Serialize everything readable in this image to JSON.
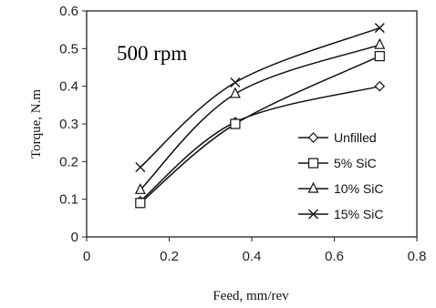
{
  "chart_data": {
    "type": "line",
    "title": "",
    "xlabel": "Feed, mm/rev",
    "ylabel": "Torque, N.m",
    "xlim": [
      0,
      0.8
    ],
    "ylim": [
      0,
      0.6
    ],
    "xticks": [
      0,
      0.2,
      0.4,
      0.6,
      0.8
    ],
    "yticks": [
      0,
      0.1,
      0.2,
      0.3,
      0.4,
      0.5,
      0.6
    ],
    "xtick_labels": [
      "0",
      "0.2",
      "0.4",
      "0.6",
      "0.8"
    ],
    "ytick_labels": [
      "0",
      "0.1",
      "0.2",
      "0.3",
      "0.4",
      "0.5",
      "0.6"
    ],
    "grid": false,
    "legend_position": "lower-right",
    "annotation": "500 rpm",
    "x": [
      0.13,
      0.36,
      0.71
    ],
    "series": [
      {
        "name": "Unfilled",
        "marker": "diamond",
        "values": [
          0.095,
          0.305,
          0.4
        ]
      },
      {
        "name": "5% SiC",
        "marker": "square",
        "values": [
          0.09,
          0.3,
          0.48
        ]
      },
      {
        "name": "10% SiC",
        "marker": "triangle",
        "values": [
          0.125,
          0.38,
          0.51
        ]
      },
      {
        "name": "15% SiC",
        "marker": "x",
        "values": [
          0.185,
          0.41,
          0.555
        ]
      }
    ]
  }
}
